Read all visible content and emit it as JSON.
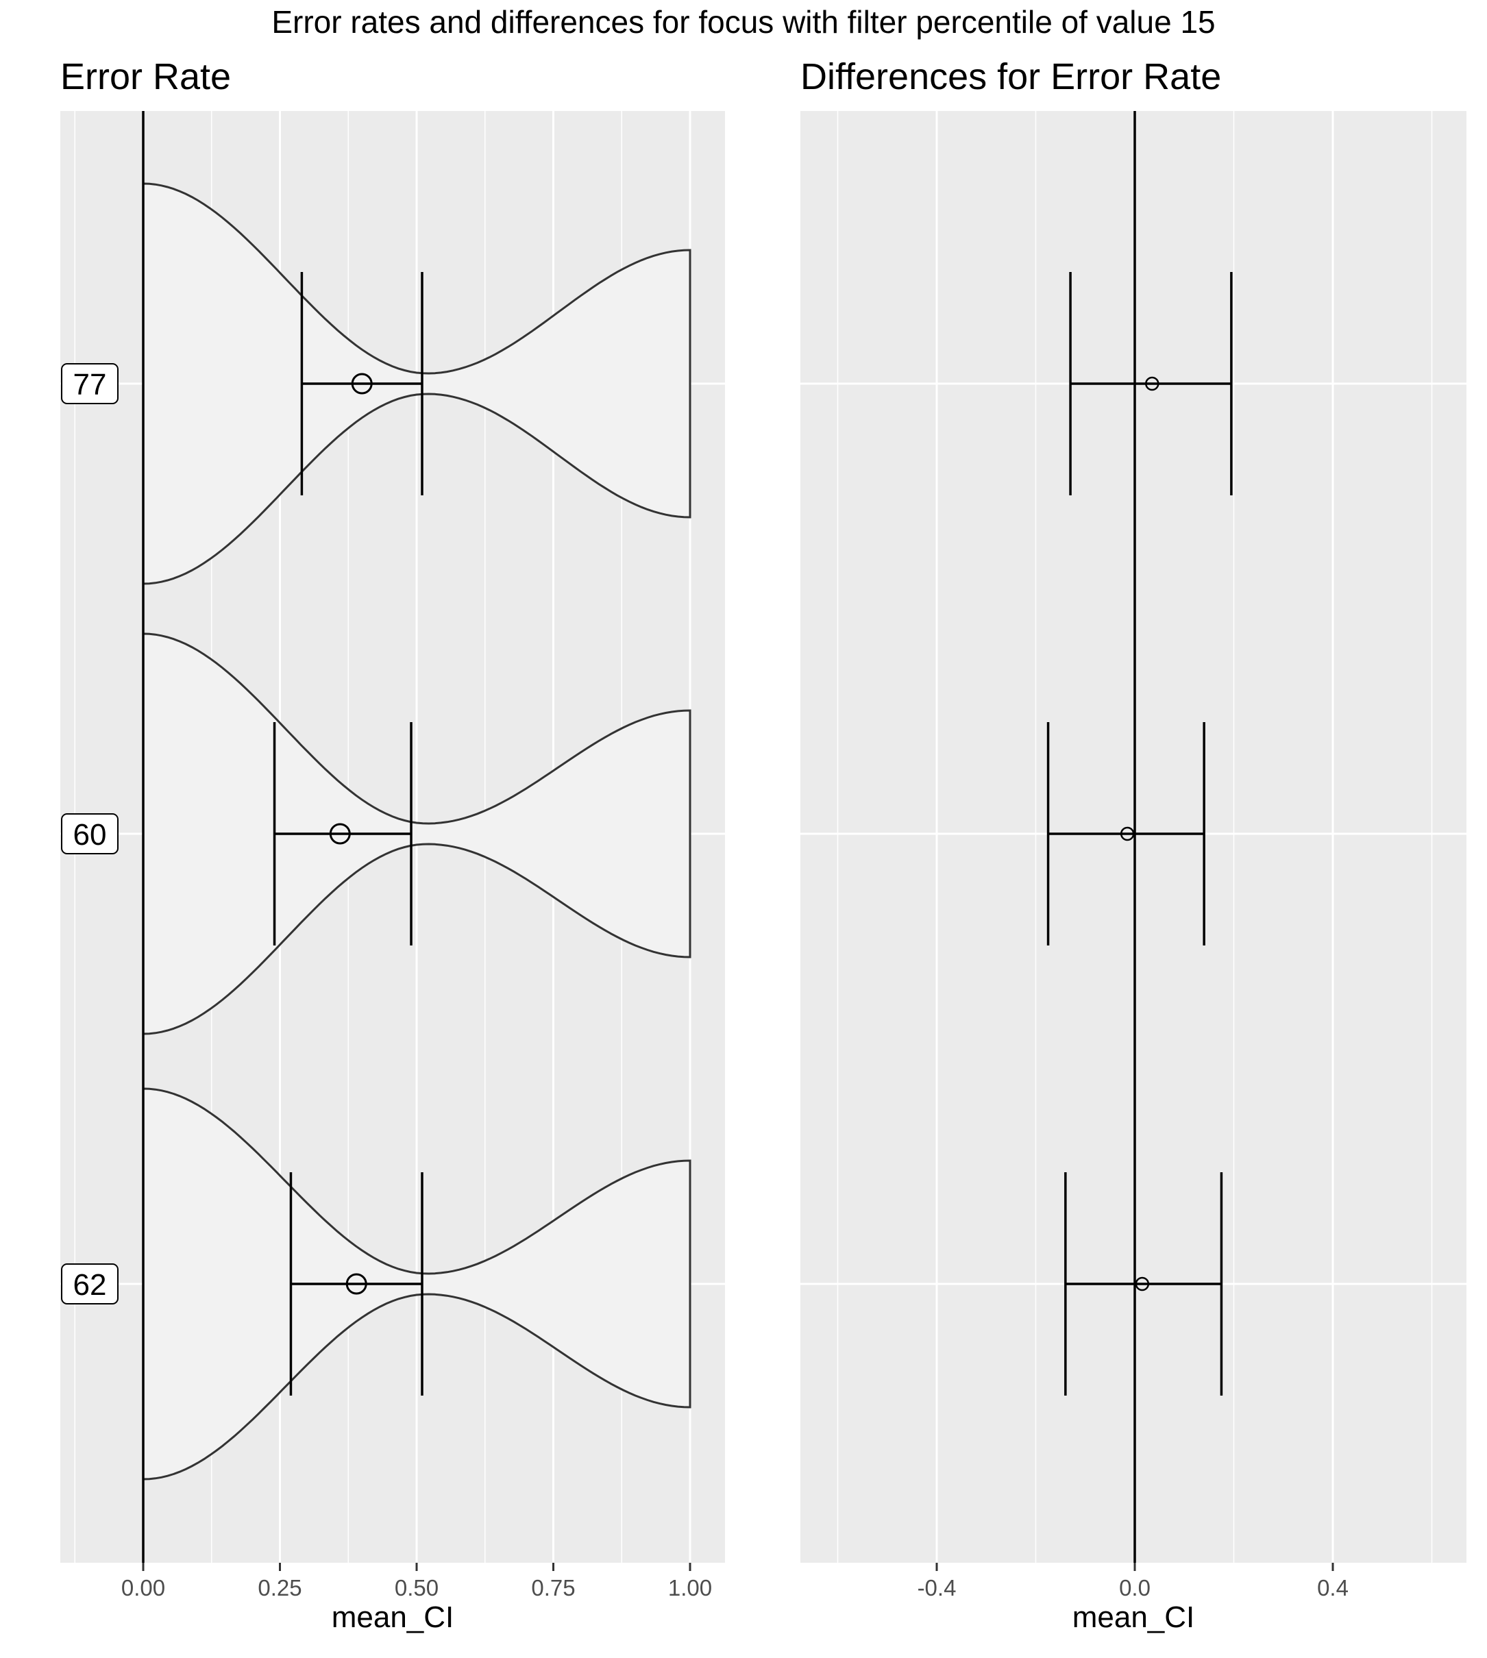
{
  "figure": {
    "title": "Error rates and differences for focus with filter percentile of value 15",
    "colors": {
      "panel_bg": "#EBEBEB",
      "grid": "#FFFFFF",
      "violin_fill": "#F2F2F2",
      "stroke": "#333333",
      "label_box": "#FFFFFF"
    }
  },
  "chart_data": [
    {
      "type": "violin",
      "title": "Error Rate",
      "xlabel": "mean_CI",
      "ylabel": "",
      "xlim": [
        -0.15,
        1.06
      ],
      "x_ticks": [
        0.0,
        0.25,
        0.5,
        0.75,
        1.0
      ],
      "x_tick_labels": [
        "0.00",
        "0.25",
        "0.50",
        "0.75",
        "1.00"
      ],
      "reference_line_x": 0.0,
      "groups": [
        "62",
        "60",
        "77"
      ],
      "group_data": [
        {
          "label": "62",
          "mean": 0.39,
          "ci_low": 0.27,
          "ci_high": 0.51,
          "median": 0.51
        },
        {
          "label": "60",
          "mean": 0.36,
          "ci_low": 0.24,
          "ci_high": 0.49,
          "median": 0.49
        },
        {
          "label": "77",
          "mean": 0.4,
          "ci_low": 0.29,
          "ci_high": 0.51,
          "median": 0.51
        }
      ],
      "grid": true
    },
    {
      "type": "errorbar",
      "title": "Differences for Error Rate",
      "xlabel": "mean_CI",
      "ylabel": "",
      "xlim": [
        -0.67,
        0.67
      ],
      "x_ticks": [
        -0.4,
        0.0,
        0.4
      ],
      "x_tick_labels": [
        "-0.4",
        "0.0",
        "0.4"
      ],
      "reference_line_x": 0.0,
      "groups": [
        "62",
        "60",
        "77"
      ],
      "group_data": [
        {
          "label": "62",
          "mean": 0.015,
          "ci_low": -0.14,
          "ci_high": 0.175
        },
        {
          "label": "60",
          "mean": -0.015,
          "ci_low": -0.175,
          "ci_high": 0.14
        },
        {
          "label": "77",
          "mean": 0.035,
          "ci_low": -0.13,
          "ci_high": 0.195
        }
      ],
      "grid": true
    }
  ]
}
